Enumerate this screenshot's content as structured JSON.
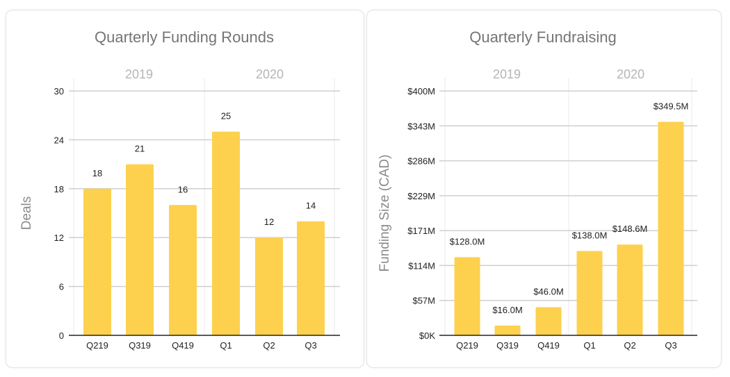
{
  "chart_data": [
    {
      "type": "bar",
      "title": "Quarterly Funding Rounds",
      "xlabel": "",
      "ylabel": "Deals",
      "groups": [
        {
          "label": "2019",
          "categories": [
            "Q219",
            "Q319",
            "Q419"
          ]
        },
        {
          "label": "2020",
          "categories": [
            "Q1",
            "Q2",
            "Q3"
          ]
        }
      ],
      "categories": [
        "Q219",
        "Q319",
        "Q419",
        "Q1",
        "Q2",
        "Q3"
      ],
      "values": [
        18,
        21,
        16,
        25,
        12,
        14
      ],
      "data_labels": [
        "18",
        "21",
        "16",
        "25",
        "12",
        "14"
      ],
      "ylim": [
        0,
        30
      ],
      "yticks": [
        0,
        6,
        12,
        18,
        24,
        30
      ],
      "ytick_labels": [
        "0",
        "6",
        "12",
        "18",
        "24",
        "30"
      ],
      "grid": true,
      "bar_color": "#FDD14E"
    },
    {
      "type": "bar",
      "title": "Quarterly Fundraising",
      "xlabel": "",
      "ylabel": "Funding Size (CAD)",
      "groups": [
        {
          "label": "2019",
          "categories": [
            "Q219",
            "Q319",
            "Q419"
          ]
        },
        {
          "label": "2020",
          "categories": [
            "Q1",
            "Q2",
            "Q3"
          ]
        }
      ],
      "categories": [
        "Q219",
        "Q319",
        "Q419",
        "Q1",
        "Q2",
        "Q3"
      ],
      "values": [
        128.0,
        16.0,
        46.0,
        138.0,
        148.6,
        349.5
      ],
      "data_labels": [
        "$128.0M",
        "$16.0M",
        "$46.0M",
        "$138.0M",
        "$148.6M",
        "$349.5M"
      ],
      "ylim": [
        0,
        400
      ],
      "yticks": [
        0,
        57.14,
        114.29,
        171.43,
        228.57,
        285.71,
        342.86,
        400
      ],
      "ytick_labels": [
        "$0K",
        "$57M",
        "$114M",
        "$171M",
        "$229M",
        "$286M",
        "$343M",
        "$400M"
      ],
      "grid": true,
      "bar_color": "#FDD14E"
    }
  ]
}
